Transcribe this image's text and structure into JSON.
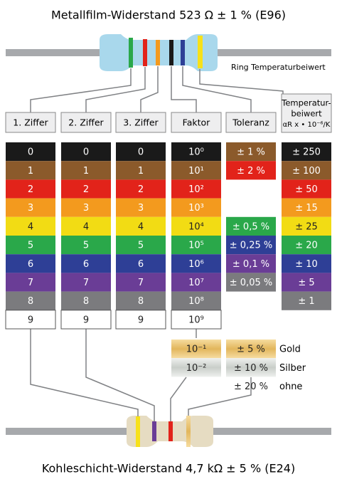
{
  "title": "Metallfilm-Widerstand 523 Ω ± 1 % (E96)",
  "ring_label": "Ring Temperaturbeiwert",
  "headers": [
    "1. Ziffer",
    "2. Ziffer",
    "3. Ziffer",
    "Faktor",
    "Toleranz"
  ],
  "tempco_header": [
    "Temperatur-",
    "beiwert",
    "αR x • 10⁻⁶/K"
  ],
  "digits": [
    "0",
    "1",
    "2",
    "3",
    "4",
    "5",
    "6",
    "7",
    "8",
    "9"
  ],
  "factors": [
    "10⁰",
    "10¹",
    "10²",
    "10³",
    "10⁴",
    "10⁵",
    "10⁶",
    "10⁷",
    "10⁸",
    "10⁹",
    "10⁻¹",
    "10⁻²"
  ],
  "tolerances": [
    "± 1 %",
    "± 2 %",
    "± 0,5 %",
    "± 0,25 %",
    "± 0,1 %",
    "± 0,05 %",
    "± 5 %",
    "± 10 %",
    "± 20 %"
  ],
  "tolerance_names": [
    "Gold",
    "Silber",
    "ohne"
  ],
  "tempco": [
    "± 250",
    "± 100",
    "± 50",
    "± 15",
    "± 25",
    "± 20",
    "± 10",
    "± 5",
    "± 1"
  ],
  "footer": "Kohleschicht-Widerstand 4,7 kΩ ± 5 % (E24)"
}
